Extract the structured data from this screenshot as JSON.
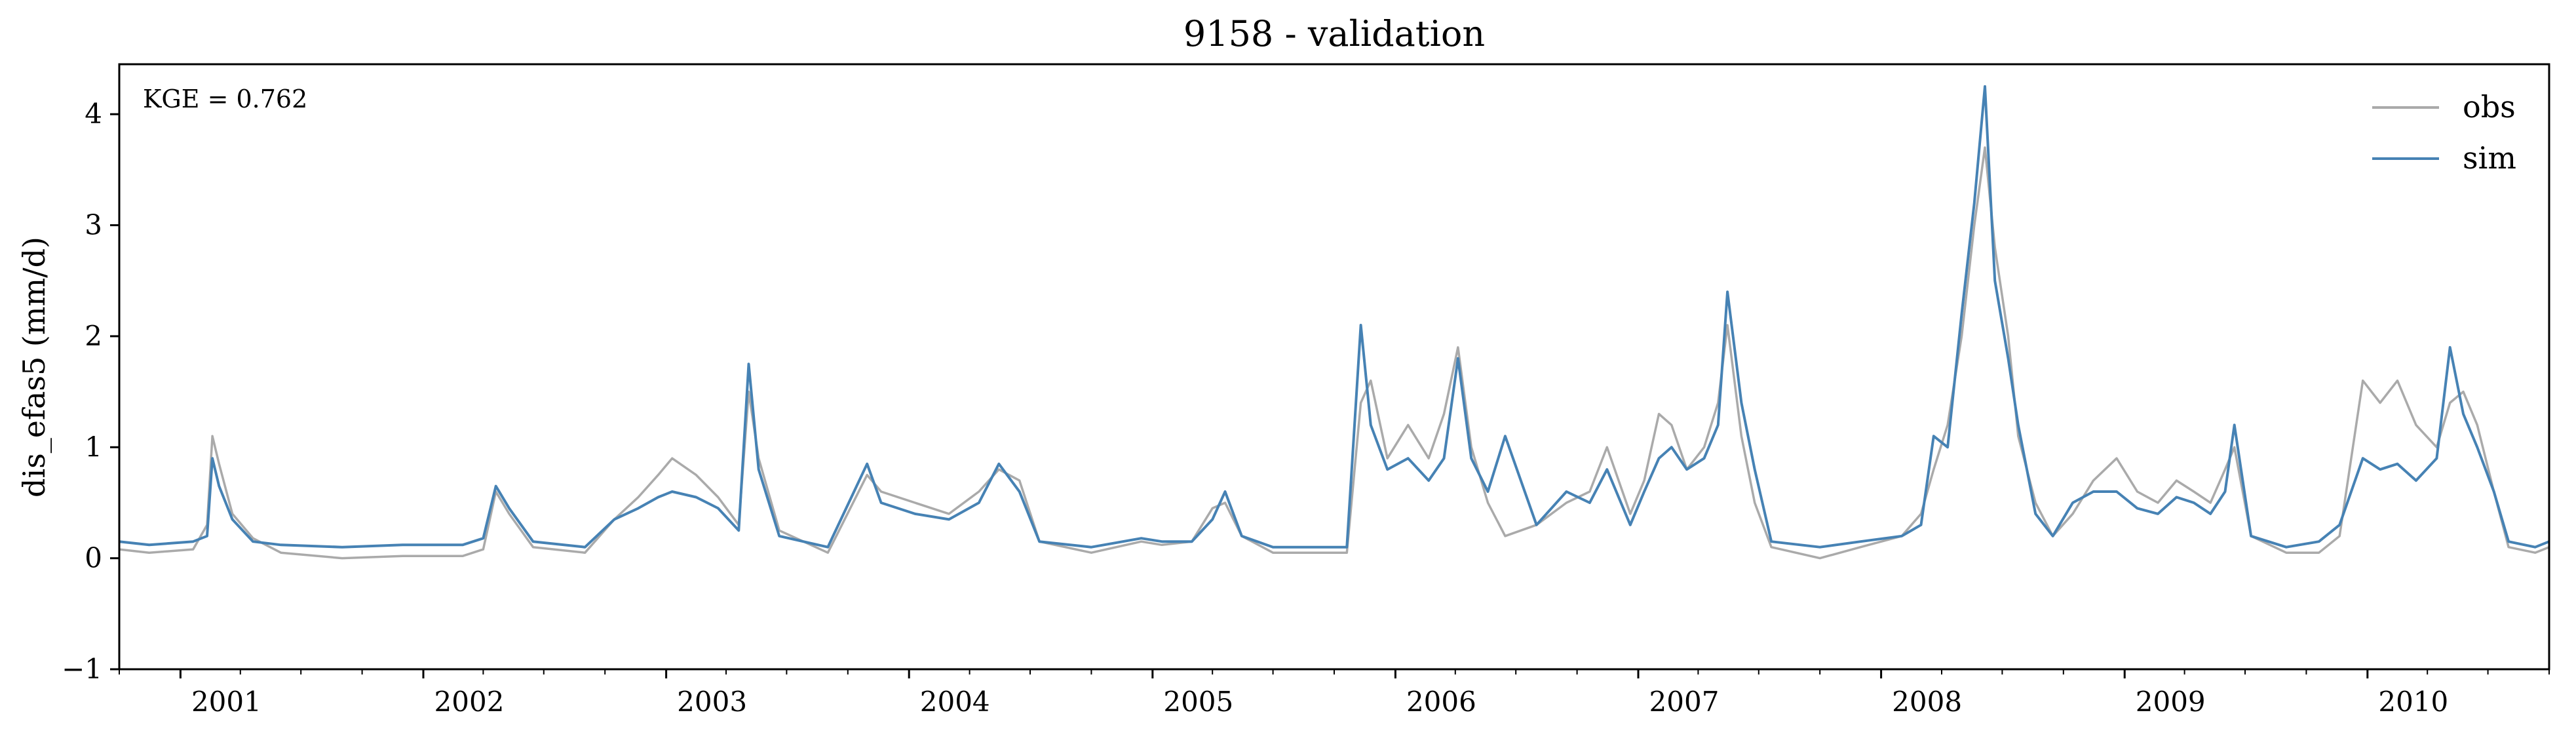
{
  "chart_data": {
    "type": "line",
    "title": "9158 - validation",
    "xlabel": "",
    "ylabel": "dis_efas5 (mm/d)",
    "annotation": "KGE = 0.762",
    "x_range": [
      "2000-10-01",
      "2010-10-01"
    ],
    "ylim": [
      -1,
      4.45
    ],
    "yticks": [
      -1,
      0,
      1,
      2,
      3,
      4
    ],
    "ytick_labels": [
      "−1",
      "0",
      "1",
      "2",
      "3",
      "4"
    ],
    "xticks": [
      "2001-01-01",
      "2002-01-01",
      "2003-01-01",
      "2004-01-01",
      "2005-01-01",
      "2006-01-01",
      "2007-01-01",
      "2008-01-01",
      "2009-01-01",
      "2010-01-01"
    ],
    "xtick_labels": [
      "2001",
      "2002",
      "2003",
      "2004",
      "2005",
      "2006",
      "2007",
      "2008",
      "2009",
      "2010"
    ],
    "grid": false,
    "legend_position": "top-right",
    "colors": {
      "obs": "#aaaaaa",
      "sim": "#4682b4"
    },
    "series": [
      {
        "name": "obs",
        "points": [
          [
            "2000-10-01",
            0.08
          ],
          [
            "2000-11-15",
            0.05
          ],
          [
            "2001-01-20",
            0.08
          ],
          [
            "2001-02-10",
            0.3
          ],
          [
            "2001-02-18",
            1.1
          ],
          [
            "2001-02-28",
            0.85
          ],
          [
            "2001-03-20",
            0.4
          ],
          [
            "2001-04-20",
            0.18
          ],
          [
            "2001-06-01",
            0.05
          ],
          [
            "2001-09-01",
            0.0
          ],
          [
            "2001-12-01",
            0.02
          ],
          [
            "2002-03-01",
            0.02
          ],
          [
            "2002-04-01",
            0.08
          ],
          [
            "2002-04-20",
            0.6
          ],
          [
            "2002-05-10",
            0.4
          ],
          [
            "2002-06-15",
            0.1
          ],
          [
            "2002-09-01",
            0.05
          ],
          [
            "2002-10-15",
            0.35
          ],
          [
            "2002-11-20",
            0.55
          ],
          [
            "2002-12-20",
            0.75
          ],
          [
            "2003-01-10",
            0.9
          ],
          [
            "2003-02-15",
            0.75
          ],
          [
            "2003-03-20",
            0.55
          ],
          [
            "2003-04-20",
            0.3
          ],
          [
            "2003-05-05",
            1.5
          ],
          [
            "2003-05-20",
            0.9
          ],
          [
            "2003-06-20",
            0.25
          ],
          [
            "2003-09-01",
            0.05
          ],
          [
            "2003-10-30",
            0.75
          ],
          [
            "2003-11-20",
            0.6
          ],
          [
            "2004-01-10",
            0.5
          ],
          [
            "2004-03-01",
            0.4
          ],
          [
            "2004-04-15",
            0.6
          ],
          [
            "2004-05-15",
            0.8
          ],
          [
            "2004-06-15",
            0.7
          ],
          [
            "2004-07-15",
            0.15
          ],
          [
            "2004-10-01",
            0.05
          ],
          [
            "2004-12-15",
            0.15
          ],
          [
            "2005-01-15",
            0.12
          ],
          [
            "2005-03-01",
            0.15
          ],
          [
            "2005-04-01",
            0.45
          ],
          [
            "2005-04-20",
            0.5
          ],
          [
            "2005-05-15",
            0.2
          ],
          [
            "2005-07-01",
            0.05
          ],
          [
            "2005-10-20",
            0.05
          ],
          [
            "2005-11-10",
            1.4
          ],
          [
            "2005-11-25",
            1.6
          ],
          [
            "2005-12-20",
            0.9
          ],
          [
            "2006-01-20",
            1.2
          ],
          [
            "2006-02-20",
            0.9
          ],
          [
            "2006-03-15",
            1.3
          ],
          [
            "2006-04-05",
            1.9
          ],
          [
            "2006-04-25",
            1.0
          ],
          [
            "2006-05-20",
            0.5
          ],
          [
            "2006-06-15",
            0.2
          ],
          [
            "2006-08-01",
            0.3
          ],
          [
            "2006-09-15",
            0.5
          ],
          [
            "2006-10-20",
            0.6
          ],
          [
            "2006-11-15",
            1.0
          ],
          [
            "2006-12-20",
            0.4
          ],
          [
            "2007-01-10",
            0.7
          ],
          [
            "2007-02-01",
            1.3
          ],
          [
            "2007-02-20",
            1.2
          ],
          [
            "2007-03-15",
            0.8
          ],
          [
            "2007-04-10",
            1.0
          ],
          [
            "2007-05-01",
            1.4
          ],
          [
            "2007-05-15",
            2.1
          ],
          [
            "2007-06-05",
            1.1
          ],
          [
            "2007-06-25",
            0.5
          ],
          [
            "2007-07-20",
            0.1
          ],
          [
            "2007-10-01",
            0.0
          ],
          [
            "2007-12-01",
            0.1
          ],
          [
            "2008-02-01",
            0.2
          ],
          [
            "2008-03-01",
            0.4
          ],
          [
            "2008-03-20",
            0.8
          ],
          [
            "2008-04-10",
            1.2
          ],
          [
            "2008-05-01",
            2.0
          ],
          [
            "2008-05-20",
            3.0
          ],
          [
            "2008-06-05",
            3.7
          ],
          [
            "2008-06-20",
            2.8
          ],
          [
            "2008-07-10",
            2.0
          ],
          [
            "2008-07-25",
            1.1
          ],
          [
            "2008-08-20",
            0.5
          ],
          [
            "2008-09-15",
            0.2
          ],
          [
            "2008-10-15",
            0.4
          ],
          [
            "2008-11-15",
            0.7
          ],
          [
            "2008-12-20",
            0.9
          ],
          [
            "2009-01-20",
            0.6
          ],
          [
            "2009-02-20",
            0.5
          ],
          [
            "2009-03-20",
            0.7
          ],
          [
            "2009-04-15",
            0.6
          ],
          [
            "2009-05-10",
            0.5
          ],
          [
            "2009-06-01",
            0.8
          ],
          [
            "2009-06-15",
            1.0
          ],
          [
            "2009-07-10",
            0.2
          ],
          [
            "2009-09-01",
            0.05
          ],
          [
            "2009-10-20",
            0.05
          ],
          [
            "2009-11-20",
            0.2
          ],
          [
            "2009-12-25",
            1.6
          ],
          [
            "2010-01-20",
            1.4
          ],
          [
            "2010-02-15",
            1.6
          ],
          [
            "2010-03-15",
            1.2
          ],
          [
            "2010-04-15",
            1.0
          ],
          [
            "2010-05-05",
            1.4
          ],
          [
            "2010-05-25",
            1.5
          ],
          [
            "2010-06-15",
            1.2
          ],
          [
            "2010-07-10",
            0.6
          ],
          [
            "2010-08-01",
            0.1
          ],
          [
            "2010-09-10",
            0.05
          ],
          [
            "2010-10-01",
            0.1
          ]
        ]
      },
      {
        "name": "sim",
        "points": [
          [
            "2000-10-01",
            0.15
          ],
          [
            "2000-11-15",
            0.12
          ],
          [
            "2001-01-20",
            0.15
          ],
          [
            "2001-02-10",
            0.2
          ],
          [
            "2001-02-18",
            0.9
          ],
          [
            "2001-02-28",
            0.65
          ],
          [
            "2001-03-20",
            0.35
          ],
          [
            "2001-04-20",
            0.15
          ],
          [
            "2001-06-01",
            0.12
          ],
          [
            "2001-09-01",
            0.1
          ],
          [
            "2001-12-01",
            0.12
          ],
          [
            "2002-03-01",
            0.12
          ],
          [
            "2002-04-01",
            0.18
          ],
          [
            "2002-04-20",
            0.65
          ],
          [
            "2002-05-10",
            0.45
          ],
          [
            "2002-06-15",
            0.15
          ],
          [
            "2002-09-01",
            0.1
          ],
          [
            "2002-10-15",
            0.35
          ],
          [
            "2002-11-20",
            0.45
          ],
          [
            "2002-12-20",
            0.55
          ],
          [
            "2003-01-10",
            0.6
          ],
          [
            "2003-02-15",
            0.55
          ],
          [
            "2003-03-20",
            0.45
          ],
          [
            "2003-04-20",
            0.25
          ],
          [
            "2003-05-05",
            1.75
          ],
          [
            "2003-05-20",
            0.8
          ],
          [
            "2003-06-20",
            0.2
          ],
          [
            "2003-09-01",
            0.1
          ],
          [
            "2003-10-30",
            0.85
          ],
          [
            "2003-11-20",
            0.5
          ],
          [
            "2004-01-10",
            0.4
          ],
          [
            "2004-03-01",
            0.35
          ],
          [
            "2004-04-15",
            0.5
          ],
          [
            "2004-05-15",
            0.85
          ],
          [
            "2004-06-15",
            0.6
          ],
          [
            "2004-07-15",
            0.15
          ],
          [
            "2004-10-01",
            0.1
          ],
          [
            "2004-12-15",
            0.18
          ],
          [
            "2005-01-15",
            0.15
          ],
          [
            "2005-03-01",
            0.15
          ],
          [
            "2005-04-01",
            0.35
          ],
          [
            "2005-04-20",
            0.6
          ],
          [
            "2005-05-15",
            0.2
          ],
          [
            "2005-07-01",
            0.1
          ],
          [
            "2005-10-20",
            0.1
          ],
          [
            "2005-11-10",
            2.1
          ],
          [
            "2005-11-25",
            1.2
          ],
          [
            "2005-12-20",
            0.8
          ],
          [
            "2006-01-20",
            0.9
          ],
          [
            "2006-02-20",
            0.7
          ],
          [
            "2006-03-15",
            0.9
          ],
          [
            "2006-04-05",
            1.8
          ],
          [
            "2006-04-25",
            0.9
          ],
          [
            "2006-05-20",
            0.6
          ],
          [
            "2006-06-15",
            1.1
          ],
          [
            "2006-08-01",
            0.3
          ],
          [
            "2006-09-15",
            0.6
          ],
          [
            "2006-10-20",
            0.5
          ],
          [
            "2006-11-15",
            0.8
          ],
          [
            "2006-12-20",
            0.3
          ],
          [
            "2007-01-10",
            0.6
          ],
          [
            "2007-02-01",
            0.9
          ],
          [
            "2007-02-20",
            1.0
          ],
          [
            "2007-03-15",
            0.8
          ],
          [
            "2007-04-10",
            0.9
          ],
          [
            "2007-05-01",
            1.2
          ],
          [
            "2007-05-15",
            2.4
          ],
          [
            "2007-06-05",
            1.4
          ],
          [
            "2007-06-25",
            0.8
          ],
          [
            "2007-07-20",
            0.15
          ],
          [
            "2007-10-01",
            0.1
          ],
          [
            "2007-12-01",
            0.15
          ],
          [
            "2008-02-01",
            0.2
          ],
          [
            "2008-03-01",
            0.3
          ],
          [
            "2008-03-20",
            1.1
          ],
          [
            "2008-04-10",
            1.0
          ],
          [
            "2008-05-01",
            2.2
          ],
          [
            "2008-05-20",
            3.2
          ],
          [
            "2008-06-05",
            4.25
          ],
          [
            "2008-06-20",
            2.5
          ],
          [
            "2008-07-10",
            1.8
          ],
          [
            "2008-07-25",
            1.2
          ],
          [
            "2008-08-20",
            0.4
          ],
          [
            "2008-09-15",
            0.2
          ],
          [
            "2008-10-15",
            0.5
          ],
          [
            "2008-11-15",
            0.6
          ],
          [
            "2008-12-20",
            0.6
          ],
          [
            "2009-01-20",
            0.45
          ],
          [
            "2009-02-20",
            0.4
          ],
          [
            "2009-03-20",
            0.55
          ],
          [
            "2009-04-15",
            0.5
          ],
          [
            "2009-05-10",
            0.4
          ],
          [
            "2009-06-01",
            0.6
          ],
          [
            "2009-06-15",
            1.2
          ],
          [
            "2009-07-10",
            0.2
          ],
          [
            "2009-09-01",
            0.1
          ],
          [
            "2009-10-20",
            0.15
          ],
          [
            "2009-11-20",
            0.3
          ],
          [
            "2009-12-25",
            0.9
          ],
          [
            "2010-01-20",
            0.8
          ],
          [
            "2010-02-15",
            0.85
          ],
          [
            "2010-03-15",
            0.7
          ],
          [
            "2010-04-15",
            0.9
          ],
          [
            "2010-05-05",
            1.9
          ],
          [
            "2010-05-25",
            1.3
          ],
          [
            "2010-06-15",
            1.0
          ],
          [
            "2010-07-10",
            0.6
          ],
          [
            "2010-08-01",
            0.15
          ],
          [
            "2010-09-10",
            0.1
          ],
          [
            "2010-10-01",
            0.15
          ]
        ]
      }
    ]
  }
}
